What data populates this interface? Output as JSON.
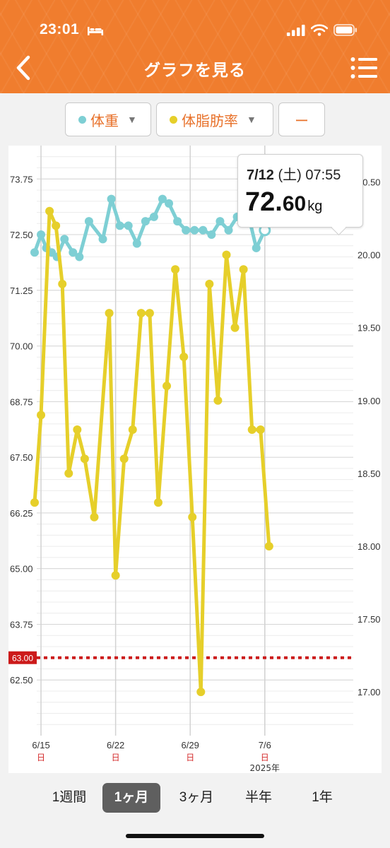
{
  "status": {
    "time": "23:01"
  },
  "header": {
    "title": "グラフを見る"
  },
  "selectors": [
    {
      "label": "体重",
      "color": "#7ecfd4"
    },
    {
      "label": "体脂肪率",
      "color": "#e6cf2a"
    },
    {
      "label": "ー"
    }
  ],
  "tooltip": {
    "date_main": "7/12",
    "date_rest": " (土) 07:55",
    "value_int": "72.",
    "value_dec": "60",
    "unit": "kg"
  },
  "range_tabs": [
    {
      "label": "1週間",
      "active": false
    },
    {
      "label": "1ヶ月",
      "active": true
    },
    {
      "label": "3ヶ月",
      "active": false
    },
    {
      "label": "半年",
      "active": false
    },
    {
      "label": "1年",
      "active": false
    }
  ],
  "chart_data": {
    "type": "line",
    "left_axis": {
      "ticks": [
        "73.75",
        "72.50",
        "71.25",
        "70.00",
        "68.75",
        "67.50",
        "66.25",
        "65.00",
        "63.75",
        "62.50"
      ],
      "range": [
        61.25,
        74.5
      ]
    },
    "right_axis": {
      "ticks": [
        "20.50",
        "20.00",
        "19.50",
        "19.00",
        "18.50",
        "18.00",
        "17.50",
        "17.00"
      ],
      "range": [
        16.7,
        20.75
      ]
    },
    "x_labels": [
      {
        "date": "6/15",
        "day": "日",
        "index": 1
      },
      {
        "date": "6/22",
        "day": "日",
        "index": 8
      },
      {
        "date": "6/29",
        "day": "日",
        "index": 15
      },
      {
        "date": "7/6",
        "day": "日",
        "index": 22
      }
    ],
    "x_year": "2025年",
    "x_index_range": [
      0.6,
      30.3
    ],
    "target_line": {
      "value": 63.0,
      "label": "63.00",
      "color": "#cc1a1a"
    },
    "series": [
      {
        "name": "体重",
        "axis": "left",
        "color": "#7ecfd4",
        "points": [
          [
            0.4,
            72.1
          ],
          [
            1,
            72.5
          ],
          [
            1.5,
            72.2
          ],
          [
            2,
            72.1
          ],
          [
            2.5,
            72.0
          ],
          [
            3.2,
            72.4
          ],
          [
            4,
            72.1
          ],
          [
            4.6,
            72.0
          ],
          [
            5.5,
            72.8
          ],
          [
            6.8,
            72.4
          ],
          [
            7.6,
            73.3
          ],
          [
            8.4,
            72.7
          ],
          [
            9.2,
            72.7
          ],
          [
            10,
            72.3
          ],
          [
            10.8,
            72.8
          ],
          [
            11.6,
            72.9
          ],
          [
            12.4,
            73.3
          ],
          [
            13,
            73.2
          ],
          [
            13.8,
            72.8
          ],
          [
            14.6,
            72.6
          ],
          [
            15.4,
            72.6
          ],
          [
            16.2,
            72.6
          ],
          [
            17,
            72.5
          ],
          [
            17.8,
            72.8
          ],
          [
            18.6,
            72.6
          ],
          [
            19.4,
            72.9
          ],
          [
            20.4,
            73.0
          ],
          [
            21.2,
            72.2
          ],
          [
            22,
            72.6
          ]
        ]
      },
      {
        "name": "体脂肪率",
        "axis": "right",
        "color": "#e6cf2a",
        "points": [
          [
            0.4,
            18.3
          ],
          [
            1,
            18.9
          ],
          [
            1.8,
            20.3
          ],
          [
            2.4,
            20.2
          ],
          [
            3,
            19.8
          ],
          [
            3.6,
            18.5
          ],
          [
            4.4,
            18.8
          ],
          [
            5.1,
            18.6
          ],
          [
            6,
            18.2
          ],
          [
            7.4,
            19.6
          ],
          [
            8,
            17.8
          ],
          [
            8.8,
            18.6
          ],
          [
            9.6,
            18.8
          ],
          [
            10.4,
            19.6
          ],
          [
            11.2,
            19.6
          ],
          [
            12,
            18.3
          ],
          [
            12.8,
            19.1
          ],
          [
            13.6,
            19.9
          ],
          [
            14.4,
            19.3
          ],
          [
            15.2,
            18.2
          ],
          [
            16,
            17.0
          ],
          [
            16.8,
            19.8
          ],
          [
            17.6,
            19.0
          ],
          [
            18.4,
            20.0
          ],
          [
            19.2,
            19.5
          ],
          [
            20,
            19.9
          ],
          [
            20.8,
            18.8
          ],
          [
            21.6,
            18.8
          ],
          [
            22.4,
            18.0
          ]
        ]
      }
    ]
  }
}
